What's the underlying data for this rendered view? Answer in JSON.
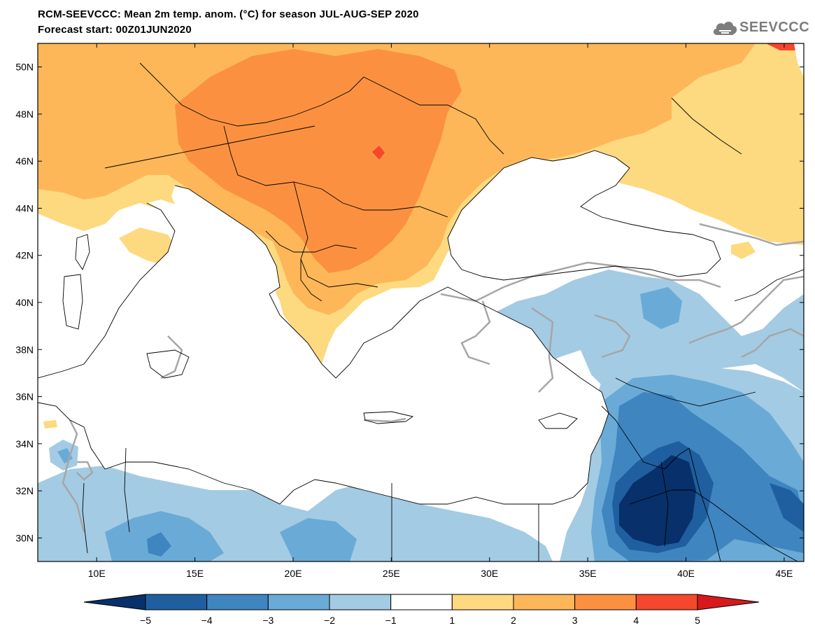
{
  "header": {
    "title": "RCM-SEEVCCC: Mean 2m temp. anom. (°C) for season JUL-AUG-SEP 2020",
    "subtitle": "Forecast start: 00Z01JUN2020",
    "logo_text": "SEEVCCC"
  },
  "map": {
    "lon_range": [
      7,
      46
    ],
    "lat_range": [
      29,
      51
    ],
    "lat_ticks": [
      {
        "value": 30,
        "label": "30N"
      },
      {
        "value": 32,
        "label": "32N"
      },
      {
        "value": 34,
        "label": "34N"
      },
      {
        "value": 36,
        "label": "36N"
      },
      {
        "value": 38,
        "label": "38N"
      },
      {
        "value": 40,
        "label": "40N"
      },
      {
        "value": 42,
        "label": "42N"
      },
      {
        "value": 44,
        "label": "44N"
      },
      {
        "value": 46,
        "label": "46N"
      },
      {
        "value": 48,
        "label": "48N"
      },
      {
        "value": 50,
        "label": "50N"
      }
    ],
    "lon_ticks": [
      {
        "value": 10,
        "label": "10E"
      },
      {
        "value": 15,
        "label": "15E"
      },
      {
        "value": 20,
        "label": "20E"
      },
      {
        "value": 25,
        "label": "25E"
      },
      {
        "value": 30,
        "label": "30E"
      },
      {
        "value": 35,
        "label": "35E"
      },
      {
        "value": 40,
        "label": "40E"
      },
      {
        "value": 45,
        "label": "45E"
      }
    ],
    "zero_contour_color": "#a6a6a6"
  },
  "colorbar": {
    "labels": [
      "−5",
      "−4",
      "−3",
      "−2",
      "−1",
      "1",
      "2",
      "3",
      "4",
      "5"
    ],
    "bins": [
      {
        "range": "< -5",
        "color": "#08306b"
      },
      {
        "range": "-5 to -4",
        "color": "#1f5f9f"
      },
      {
        "range": "-4 to -3",
        "color": "#3f85c0"
      },
      {
        "range": "-3 to -2",
        "color": "#6aaad6"
      },
      {
        "range": "-2 to -1",
        "color": "#a3cbe3"
      },
      {
        "range": "-1 to 1",
        "color": "#ffffff"
      },
      {
        "range": "1 to 2",
        "color": "#fdd97f"
      },
      {
        "range": "2 to 3",
        "color": "#fdb758"
      },
      {
        "range": "3 to 4",
        "color": "#fb9140"
      },
      {
        "range": "4 to 5",
        "color": "#f4472c"
      },
      {
        "range": "> 5",
        "color": "#d7191c"
      }
    ]
  }
}
